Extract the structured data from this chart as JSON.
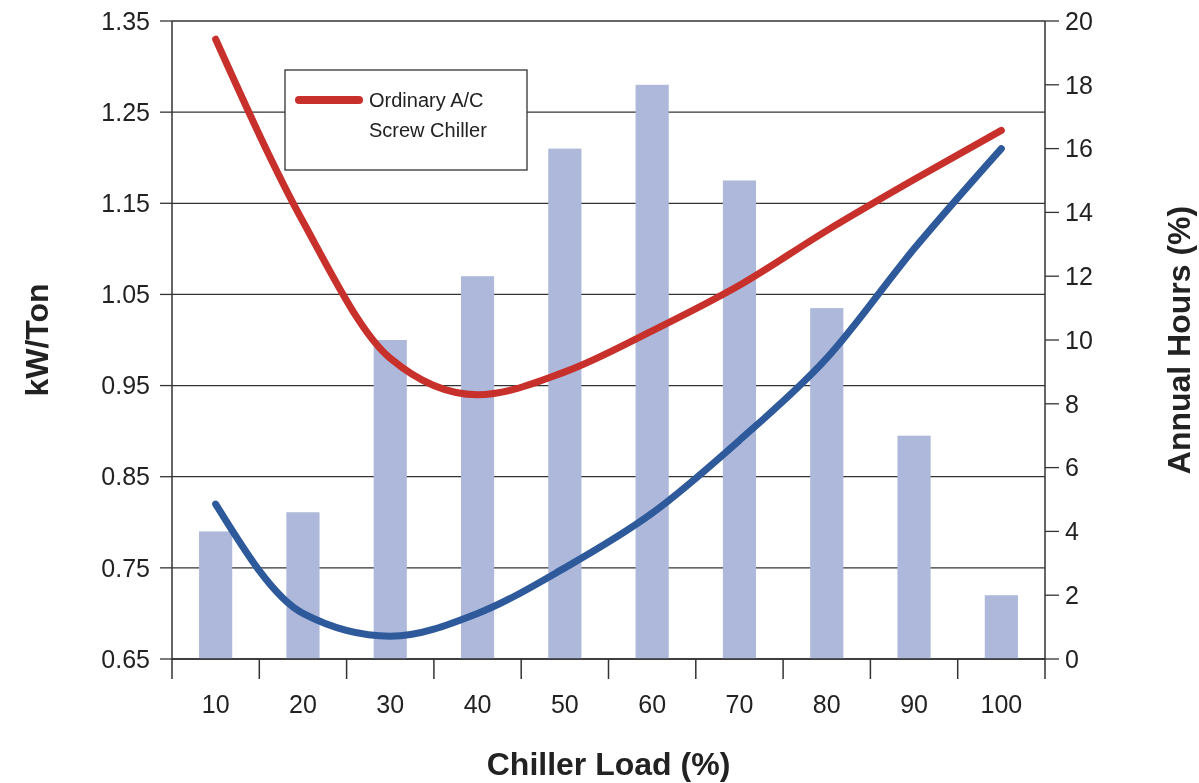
{
  "chart_data": {
    "type": "bar",
    "xlabel": "Chiller Load (%)",
    "ylabel": "kW/Ton",
    "y2label": "Annual Hours (%)",
    "categories": [
      "10",
      "20",
      "30",
      "40",
      "50",
      "60",
      "70",
      "80",
      "90",
      "100"
    ],
    "series": [
      {
        "axis": "y2",
        "color": "#adb8da",
        "values": [
          4,
          4.6,
          10,
          12,
          16,
          18,
          15,
          11,
          7,
          2
        ]
      },
      {
        "type": "line",
        "color": "#2e5a9c",
        "values": [
          0.82,
          0.7,
          0.675,
          0.7,
          0.75,
          0.81,
          0.89,
          0.98,
          1.1,
          1.21
        ]
      },
      {
        "type": "line",
        "name": "Ordinary A/C Screw Chiller",
        "color": "#c8302c",
        "values": [
          1.33,
          1.13,
          0.98,
          0.94,
          0.965,
          1.01,
          1.06,
          1.12,
          1.176,
          1.23
        ]
      }
    ],
    "ylim": [
      0.65,
      1.35
    ],
    "yticks": [
      {
        "value": 0.65,
        "label": "0.65"
      },
      {
        "value": 0.75,
        "label": "0.75"
      },
      {
        "value": 0.85,
        "label": "0.85"
      },
      {
        "value": 0.95,
        "label": "0.95"
      },
      {
        "value": 1.05,
        "label": "1.05"
      },
      {
        "value": 1.15,
        "label": "1.15"
      },
      {
        "value": 1.25,
        "label": "1.25"
      },
      {
        "value": 1.35,
        "label": "1.35"
      }
    ],
    "y2lim": [
      0,
      20
    ],
    "y2ticks": [
      0,
      2,
      4,
      6,
      8,
      10,
      12,
      14,
      16,
      18,
      20
    ],
    "grid": "y",
    "legend": "top left",
    "line_style": "solid",
    "marker": "none"
  }
}
